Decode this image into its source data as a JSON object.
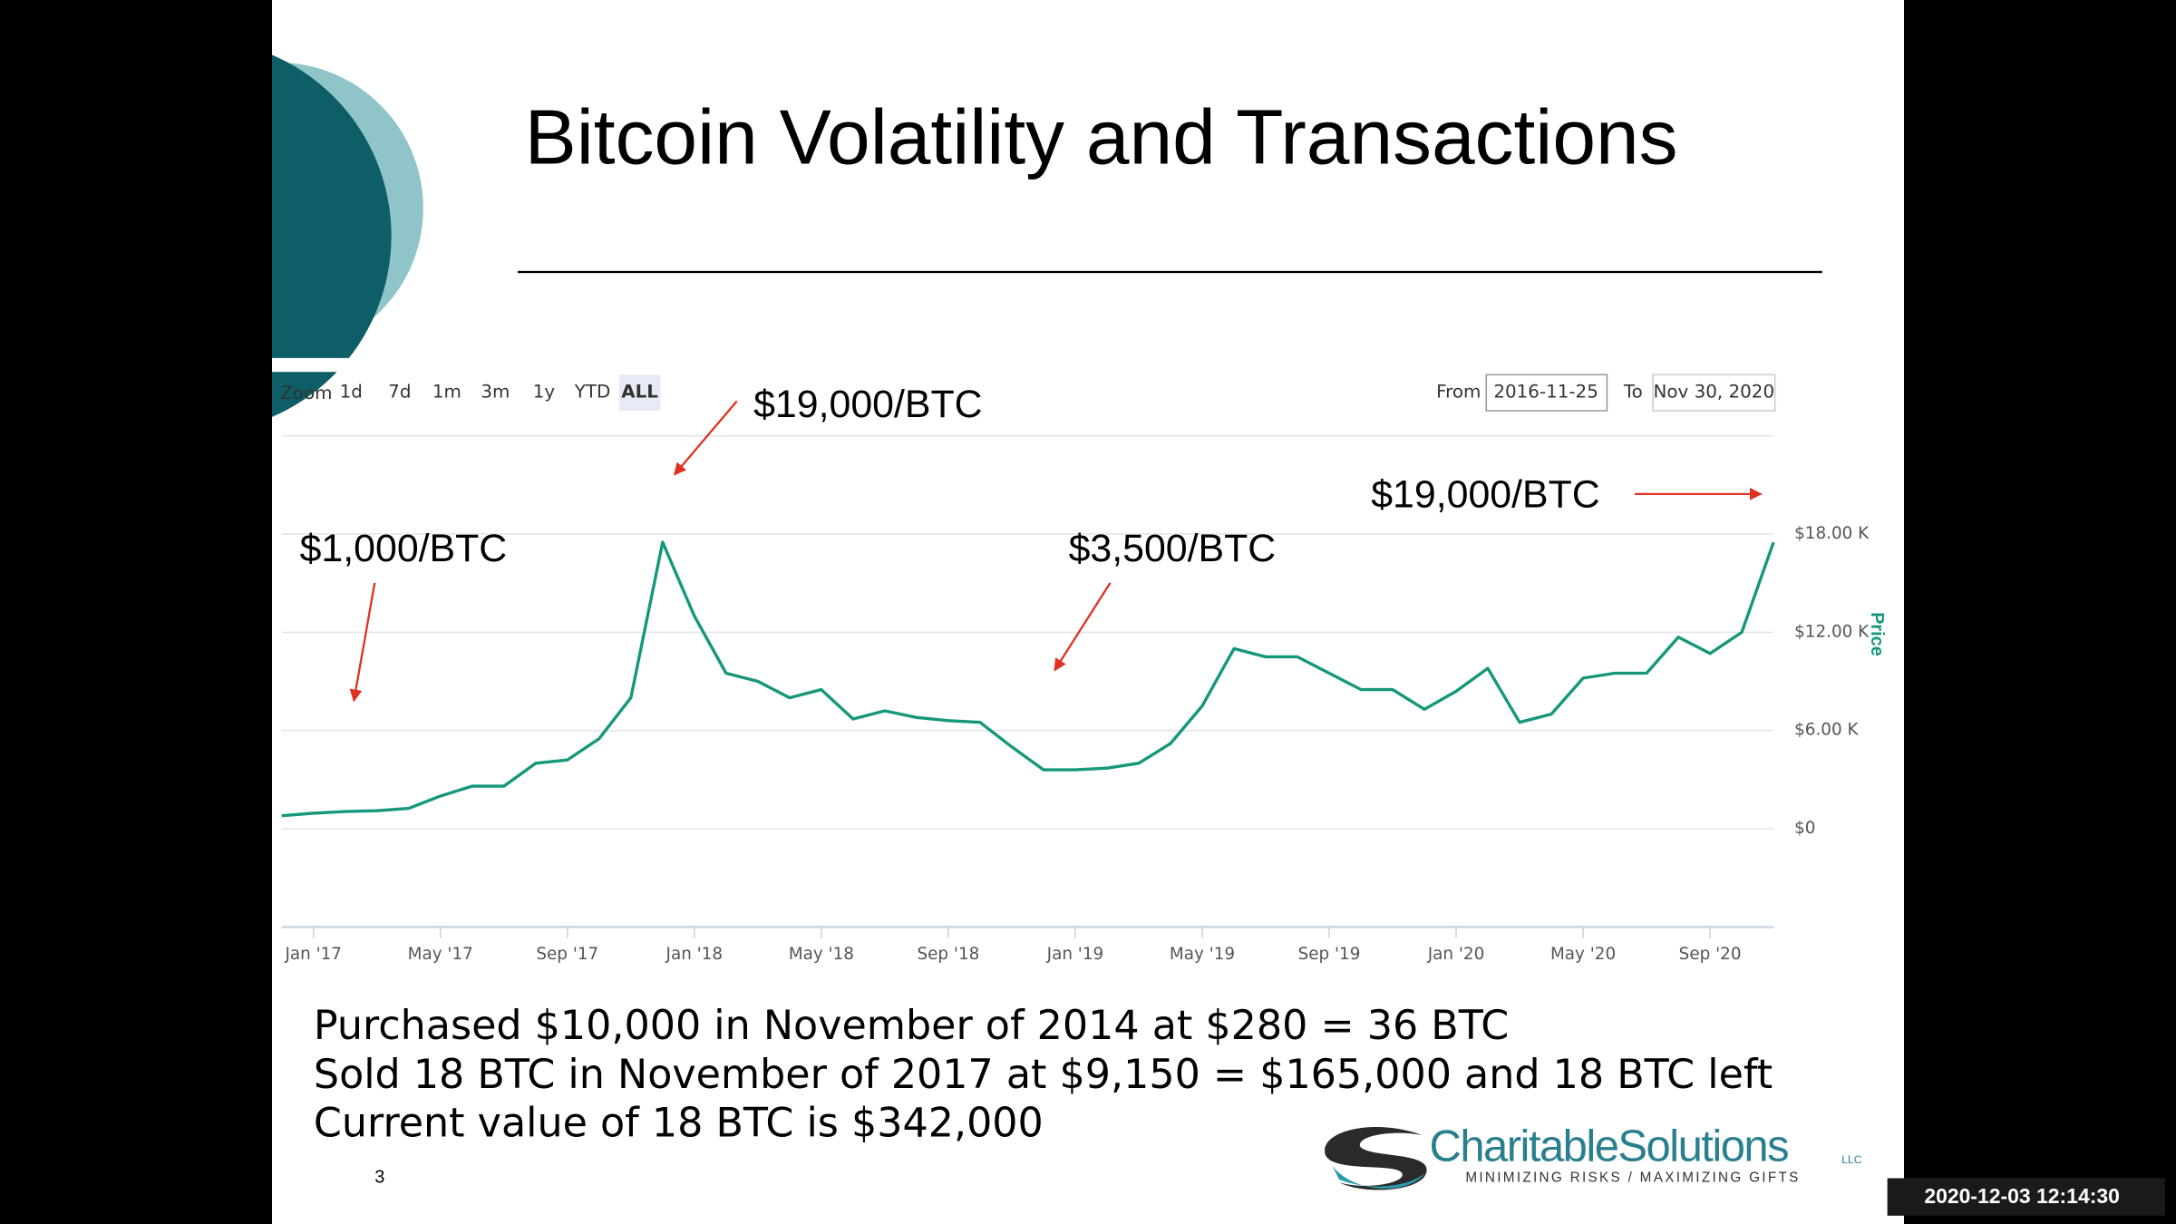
{
  "slide": {
    "title": "Bitcoin Volatility and Transactions",
    "notes": [
      "Purchased $10,000 in November of 2014 at $280 = 36 BTC",
      "Sold 18 BTC in November of 2017 at $9,150 = $165,000 and 18 BTC left",
      "Current value of 18 BTC is $342,000"
    ],
    "page_number": "3",
    "logo": {
      "name": "CharitableSolutions",
      "suffix": "LLC",
      "tagline": "MINIMIZING RISKS / MAXIMIZING GIFTS"
    },
    "timestamp": "2020-12-03 12:14:30"
  },
  "chart_data": {
    "type": "line",
    "zoom": {
      "label": "Zoom",
      "buttons": [
        "1d",
        "7d",
        "1m",
        "3m",
        "1y",
        "YTD",
        "ALL"
      ]
    },
    "from_label": "From",
    "from": "2016-11-25",
    "to_label": "To",
    "to": "Nov 30, 2020",
    "y_label": "Price",
    "annotations": [
      "$1,000/BTC",
      "$19,000/BTC",
      "$3,500/BTC",
      "$19,000/BTC"
    ],
    "x": [
      "2016-12",
      "2017-01",
      "2017-02",
      "2017-03",
      "2017-04",
      "2017-05",
      "2017-06",
      "2017-07",
      "2017-08",
      "2017-09",
      "2017-10",
      "2017-11",
      "2017-12",
      "2018-01",
      "2018-02",
      "2018-03",
      "2018-04",
      "2018-05",
      "2018-06",
      "2018-07",
      "2018-08",
      "2018-09",
      "2018-10",
      "2018-11",
      "2018-12",
      "2019-01",
      "2019-02",
      "2019-03",
      "2019-04",
      "2019-05",
      "2019-06",
      "2019-07",
      "2019-08",
      "2019-09",
      "2019-10",
      "2019-11",
      "2019-12",
      "2020-01",
      "2020-02",
      "2020-03",
      "2020-04",
      "2020-05",
      "2020-06",
      "2020-07",
      "2020-08",
      "2020-09",
      "2020-10",
      "2020-11"
    ],
    "series": [
      {
        "name": "Price",
        "color": "#14977a",
        "values": [
          800,
          950,
          1050,
          1100,
          1250,
          2000,
          2600,
          2600,
          4000,
          4200,
          5500,
          8000,
          17500,
          13000,
          9500,
          9000,
          8000,
          8500,
          6700,
          7200,
          6800,
          6600,
          6500,
          5000,
          3600,
          3600,
          3700,
          4000,
          5200,
          7500,
          11000,
          10500,
          10500,
          9500,
          8500,
          8500,
          7300,
          8400,
          9800,
          6500,
          7000,
          9200,
          9500,
          9500,
          11700,
          10700,
          12000,
          17500
        ]
      }
    ],
    "xlim": [
      "2016-12",
      "2020-11"
    ],
    "xticks": [
      {
        "value": "2017-01",
        "label": "Jan '17"
      },
      {
        "value": "2017-05",
        "label": "May '17"
      },
      {
        "value": "2017-09",
        "label": "Sep '17"
      },
      {
        "value": "2018-01",
        "label": "Jan '18"
      },
      {
        "value": "2018-05",
        "label": "May '18"
      },
      {
        "value": "2018-09",
        "label": "Sep '18"
      },
      {
        "value": "2019-01",
        "label": "Jan '19"
      },
      {
        "value": "2019-05",
        "label": "May '19"
      },
      {
        "value": "2019-09",
        "label": "Sep '19"
      },
      {
        "value": "2020-01",
        "label": "Jan '20"
      },
      {
        "value": "2020-05",
        "label": "May '20"
      },
      {
        "value": "2020-09",
        "label": "Sep '20"
      }
    ],
    "ylim": [
      -6000,
      24000
    ],
    "yticks": [
      {
        "value": 0,
        "label": "$0"
      },
      {
        "value": 6000,
        "label": "$6.00 K"
      },
      {
        "value": 12000,
        "label": "$12.00 K"
      },
      {
        "value": 18000,
        "label": "$18.00 K"
      }
    ],
    "grid": true
  }
}
